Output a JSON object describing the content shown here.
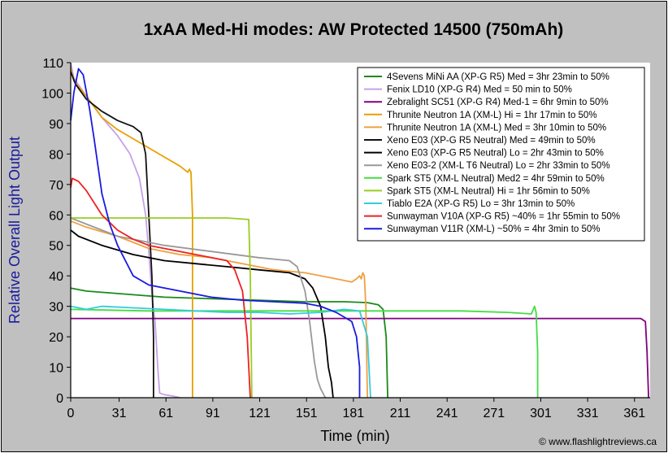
{
  "chart_data": {
    "type": "line",
    "title": "1xAA Med-Hi modes: AW Protected 14500 (750mAh)",
    "xlabel": "Time (min)",
    "ylabel": "Relative Overall Light Output",
    "credit": "© www.flashlightreviews.ca",
    "xlim": [
      0,
      371
    ],
    "ylim": [
      0,
      110
    ],
    "xticks": [
      0,
      31,
      61,
      91,
      121,
      151,
      181,
      211,
      241,
      271,
      301,
      331,
      361
    ],
    "yticks": [
      0,
      10,
      20,
      30,
      40,
      50,
      60,
      70,
      80,
      90,
      100,
      110
    ],
    "legend_position": "top-right",
    "grid": false,
    "series": [
      {
        "name": "4Sevens MiNi AA (XP-G R5) Med = 3hr 23min to 50%",
        "color": "#1a8a1a",
        "points": [
          [
            0,
            36
          ],
          [
            10,
            35
          ],
          [
            60,
            33
          ],
          [
            120,
            32
          ],
          [
            150,
            31.5
          ],
          [
            175,
            31.5
          ],
          [
            190,
            31.2
          ],
          [
            197,
            30.5
          ],
          [
            200,
            29
          ],
          [
            202,
            20
          ],
          [
            203,
            0
          ]
        ]
      },
      {
        "name": "Fenix LD10 (XP-G R4) Med = 50 min to 50%",
        "color": "#c8a0e8",
        "points": [
          [
            0,
            110
          ],
          [
            2,
            105
          ],
          [
            10,
            99
          ],
          [
            20,
            92
          ],
          [
            30,
            86
          ],
          [
            38,
            80
          ],
          [
            44,
            72
          ],
          [
            48,
            60
          ],
          [
            50,
            48
          ],
          [
            52,
            34
          ],
          [
            54,
            25
          ],
          [
            56,
            8
          ],
          [
            57,
            1.5
          ],
          [
            60,
            1
          ],
          [
            66,
            0.5
          ],
          [
            70,
            0
          ]
        ]
      },
      {
        "name": "Zebralight SC51 (XP-G R4) Med-1 = 6hr 9min to 50%",
        "color": "#800080",
        "points": [
          [
            0,
            26
          ],
          [
            100,
            26
          ],
          [
            200,
            26
          ],
          [
            300,
            26
          ],
          [
            365,
            26
          ],
          [
            368,
            25
          ],
          [
            369,
            15
          ],
          [
            370,
            0
          ]
        ]
      },
      {
        "name": "Thrunite Neutron 1A (XM-L) Hi = 1hr 17min to 50%",
        "color": "#e8a000",
        "points": [
          [
            0,
            108
          ],
          [
            2,
            104
          ],
          [
            10,
            99
          ],
          [
            20,
            92
          ],
          [
            30,
            88
          ],
          [
            40,
            85
          ],
          [
            50,
            82
          ],
          [
            60,
            79
          ],
          [
            70,
            76
          ],
          [
            75,
            74
          ],
          [
            76,
            75
          ],
          [
            77,
            74
          ],
          [
            78,
            60
          ],
          [
            78,
            0
          ]
        ]
      },
      {
        "name": "Thrunite Neutron 1A (XM-L) Med = 3hr 10min to 50%",
        "color": "#f0a040",
        "points": [
          [
            0,
            58
          ],
          [
            10,
            56
          ],
          [
            30,
            53
          ],
          [
            50,
            49
          ],
          [
            70,
            47
          ],
          [
            90,
            46
          ],
          [
            110,
            44
          ],
          [
            130,
            42
          ],
          [
            150,
            41
          ],
          [
            170,
            39
          ],
          [
            180,
            38
          ],
          [
            183,
            39
          ],
          [
            185,
            40
          ],
          [
            186,
            39
          ],
          [
            187,
            41
          ],
          [
            188,
            40
          ],
          [
            189,
            30
          ],
          [
            190,
            0
          ]
        ]
      },
      {
        "name": "Xeno E03 (XP-G R5 Neutral) Med = 49min to 50%",
        "color": "#111111",
        "points": [
          [
            0,
            107
          ],
          [
            3,
            103
          ],
          [
            10,
            98
          ],
          [
            20,
            94
          ],
          [
            30,
            91
          ],
          [
            40,
            89
          ],
          [
            45,
            87
          ],
          [
            48,
            80
          ],
          [
            50,
            60
          ],
          [
            52,
            40
          ],
          [
            53,
            20
          ],
          [
            53,
            0
          ]
        ]
      },
      {
        "name": "Xeno E03 (XP-G R5 Neutral) Lo = 2hr 43min to 50%",
        "color": "#000000",
        "points": [
          [
            0,
            55
          ],
          [
            5,
            53
          ],
          [
            20,
            50
          ],
          [
            40,
            47
          ],
          [
            60,
            45
          ],
          [
            80,
            44
          ],
          [
            100,
            43
          ],
          [
            120,
            42
          ],
          [
            140,
            41
          ],
          [
            150,
            39
          ],
          [
            155,
            36
          ],
          [
            160,
            30
          ],
          [
            163,
            20
          ],
          [
            165,
            10
          ],
          [
            167,
            5
          ],
          [
            168,
            0
          ]
        ]
      },
      {
        "name": "Xeno E03-2 (XM-L T6 Neutral) Lo = 2hr 33min to 50%",
        "color": "#999999",
        "points": [
          [
            0,
            59
          ],
          [
            10,
            57
          ],
          [
            30,
            53
          ],
          [
            60,
            50
          ],
          [
            90,
            48
          ],
          [
            120,
            46
          ],
          [
            140,
            45
          ],
          [
            145,
            43
          ],
          [
            150,
            35
          ],
          [
            153,
            25
          ],
          [
            156,
            12
          ],
          [
            158,
            6
          ],
          [
            160,
            3
          ],
          [
            163,
            0
          ]
        ]
      },
      {
        "name": "Spark ST5 (XM-L Neutral) Med2 = 4hr 59min to 50%",
        "color": "#44dd44",
        "points": [
          [
            0,
            29
          ],
          [
            50,
            28.5
          ],
          [
            100,
            28.5
          ],
          [
            150,
            28.5
          ],
          [
            200,
            28.5
          ],
          [
            250,
            28.5
          ],
          [
            280,
            28
          ],
          [
            295,
            27.5
          ],
          [
            297,
            30
          ],
          [
            298,
            28
          ],
          [
            299,
            15
          ],
          [
            299,
            0
          ]
        ]
      },
      {
        "name": "Spark ST5 (XM-L Neutral) Hi = 1hr 56min to 50%",
        "color": "#99cc22",
        "points": [
          [
            0,
            59
          ],
          [
            50,
            59
          ],
          [
            100,
            59
          ],
          [
            114,
            58.5
          ],
          [
            115,
            40
          ],
          [
            116,
            0
          ]
        ]
      },
      {
        "name": "Tiablo E2A (XP-G R5) Lo = 3hr 13min to 50%",
        "color": "#33ccdd",
        "points": [
          [
            0,
            30
          ],
          [
            10,
            29
          ],
          [
            20,
            30
          ],
          [
            40,
            29.5
          ],
          [
            60,
            29
          ],
          [
            80,
            28.5
          ],
          [
            100,
            28
          ],
          [
            120,
            28
          ],
          [
            140,
            27.5
          ],
          [
            160,
            28
          ],
          [
            175,
            29
          ],
          [
            185,
            28.5
          ],
          [
            190,
            20
          ],
          [
            192,
            0
          ]
        ]
      },
      {
        "name": "Sunwayman V10A (XP-G R5) ~40% = 1hr 55min to 50%",
        "color": "#ee2020",
        "points": [
          [
            0,
            69
          ],
          [
            1,
            72
          ],
          [
            5,
            71
          ],
          [
            10,
            68
          ],
          [
            20,
            60
          ],
          [
            30,
            55
          ],
          [
            40,
            52
          ],
          [
            50,
            50
          ],
          [
            60,
            49
          ],
          [
            70,
            48
          ],
          [
            80,
            47
          ],
          [
            90,
            46
          ],
          [
            100,
            45
          ],
          [
            105,
            42
          ],
          [
            110,
            35
          ],
          [
            113,
            20
          ],
          [
            115,
            0
          ]
        ]
      },
      {
        "name": "Sunwayman V11R (XM-L) ~50% = 4hr 3min to 50%",
        "color": "#1a1ae0",
        "points": [
          [
            0,
            91
          ],
          [
            2,
            100
          ],
          [
            5,
            108
          ],
          [
            8,
            106
          ],
          [
            12,
            95
          ],
          [
            15,
            85
          ],
          [
            20,
            67
          ],
          [
            25,
            57
          ],
          [
            30,
            50
          ],
          [
            35,
            45
          ],
          [
            40,
            40
          ],
          [
            50,
            37
          ],
          [
            70,
            35
          ],
          [
            90,
            33
          ],
          [
            110,
            32
          ],
          [
            130,
            31.5
          ],
          [
            150,
            31
          ],
          [
            160,
            30
          ],
          [
            170,
            28
          ],
          [
            180,
            25
          ],
          [
            183,
            20
          ],
          [
            185,
            10
          ],
          [
            185,
            0
          ]
        ]
      }
    ]
  }
}
